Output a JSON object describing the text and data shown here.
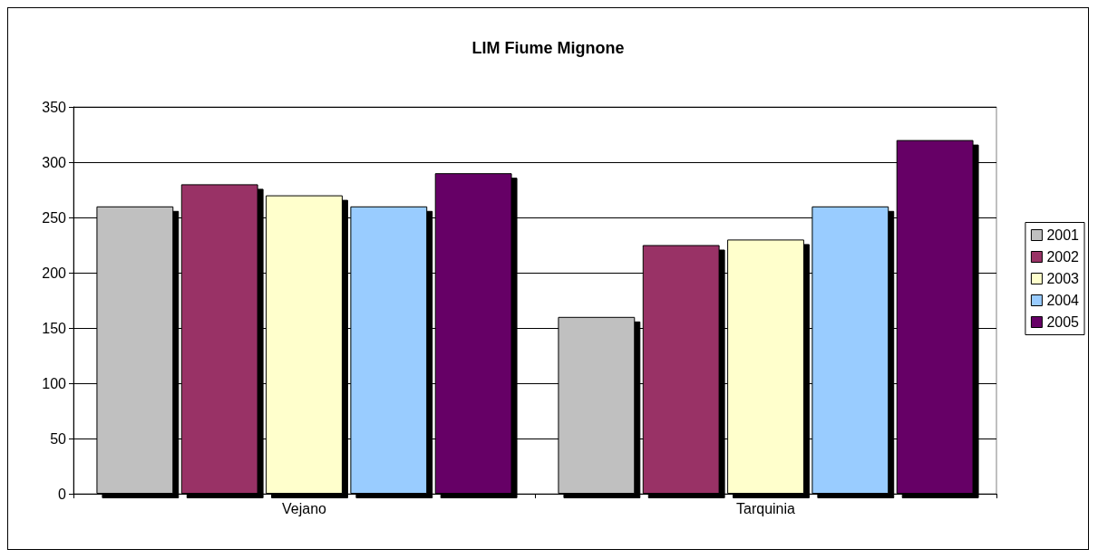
{
  "chart_data": {
    "type": "bar",
    "title": "LIM Fiume Mignone",
    "categories": [
      "Vejano",
      "Tarquinia"
    ],
    "series": [
      {
        "name": "2001",
        "color": "#c0c0c0",
        "values": [
          260,
          160
        ]
      },
      {
        "name": "2002",
        "color": "#993366",
        "values": [
          280,
          225
        ]
      },
      {
        "name": "2003",
        "color": "#ffffcc",
        "values": [
          270,
          230
        ]
      },
      {
        "name": "2004",
        "color": "#99ccff",
        "values": [
          260,
          260
        ]
      },
      {
        "name": "2005",
        "color": "#660066",
        "values": [
          290,
          320
        ]
      }
    ],
    "ylim": [
      0,
      350
    ],
    "yticks": [
      0,
      50,
      100,
      150,
      200,
      250,
      300,
      350
    ],
    "grid": "y",
    "legend": "right"
  }
}
